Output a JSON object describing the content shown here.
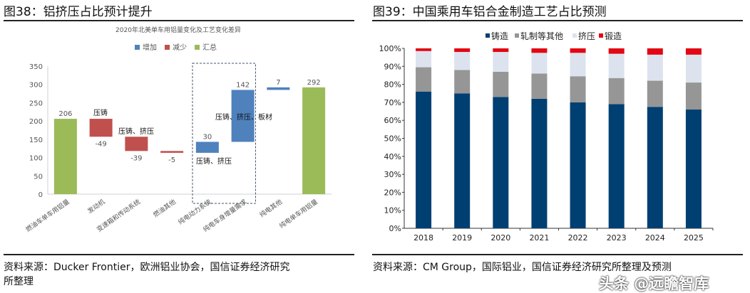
{
  "left": {
    "figure_title": "图38：铝挤压占比预计提升",
    "source_line1": "资料来源：Ducker Frontier，欧洲铝业协会，国信证券经济研究",
    "source_line2": "所整理"
  },
  "right": {
    "figure_title": "图39：中国乘用车铝合金制造工艺占比预测",
    "source": "资料来源：CM Group，国际铝业，国信证券经济研究所整理及预测"
  },
  "watermark": "头条 @远瞻智库",
  "chart_data": [
    {
      "type": "bar",
      "subtype": "waterfall",
      "title": "2020年北美单车用铝量变化及工艺变化差异",
      "legend": [
        {
          "name": "增加",
          "color": "#4f81bd"
        },
        {
          "name": "减少",
          "color": "#c0504d"
        },
        {
          "name": "汇总",
          "color": "#9bbb59"
        }
      ],
      "legend_position": "top",
      "categories": [
        "燃油车单车用铝量",
        "发动机",
        "变速箱和传动系统",
        "燃油其他",
        "纯电动力系统",
        "纯电车身增量需求",
        "纯电其他",
        "纯电单车用铝量"
      ],
      "values": [
        206,
        -49,
        -39,
        -5,
        30,
        142,
        7,
        292
      ],
      "kinds": [
        "total",
        "decrease",
        "decrease",
        "decrease",
        "increase",
        "increase",
        "increase",
        "total"
      ],
      "data_labels": [
        "206",
        "-49",
        "-39",
        "-5",
        "30",
        "142",
        "7",
        "292"
      ],
      "annotations": [
        {
          "category": "发动机",
          "text": "压铸"
        },
        {
          "category": "变速箱和传动系统",
          "text": "压铸、挤压"
        },
        {
          "category": "纯电动力系统",
          "text": "压铸、挤压"
        },
        {
          "category": "纯电车身增量需求",
          "text": "压铸、挤压、板材"
        }
      ],
      "highlight_box_categories": [
        "纯电动力系统",
        "纯电车身增量需求"
      ],
      "ylim": [
        0,
        350
      ],
      "yticks": [
        0,
        50,
        100,
        150,
        200,
        250,
        300,
        350
      ],
      "grid": false
    },
    {
      "type": "bar",
      "subtype": "stacked-percent",
      "categories": [
        "2018",
        "2019",
        "2020",
        "2021",
        "2022",
        "2023",
        "2024",
        "2025"
      ],
      "series": [
        {
          "name": "铸造",
          "color": "#003f72",
          "values": [
            76,
            75,
            73,
            72,
            70,
            69,
            67.5,
            66
          ]
        },
        {
          "name": "轧制等其他",
          "color": "#969696",
          "values": [
            13.5,
            13,
            14,
            14,
            14.5,
            14.5,
            14.5,
            15
          ]
        },
        {
          "name": "挤压",
          "color": "#dce3ee",
          "values": [
            9,
            10,
            11,
            11.5,
            13,
            13.5,
            14.5,
            15.5
          ]
        },
        {
          "name": "锻造",
          "color": "#e30613",
          "values": [
            1.5,
            2,
            2,
            2.5,
            2.5,
            3,
            3.5,
            3.5
          ]
        }
      ],
      "legend_position": "top",
      "ylim": [
        0,
        100
      ],
      "yticks": [
        "0%",
        "10%",
        "20%",
        "30%",
        "40%",
        "50%",
        "60%",
        "70%",
        "80%",
        "90%",
        "100%"
      ],
      "grid": false
    }
  ]
}
